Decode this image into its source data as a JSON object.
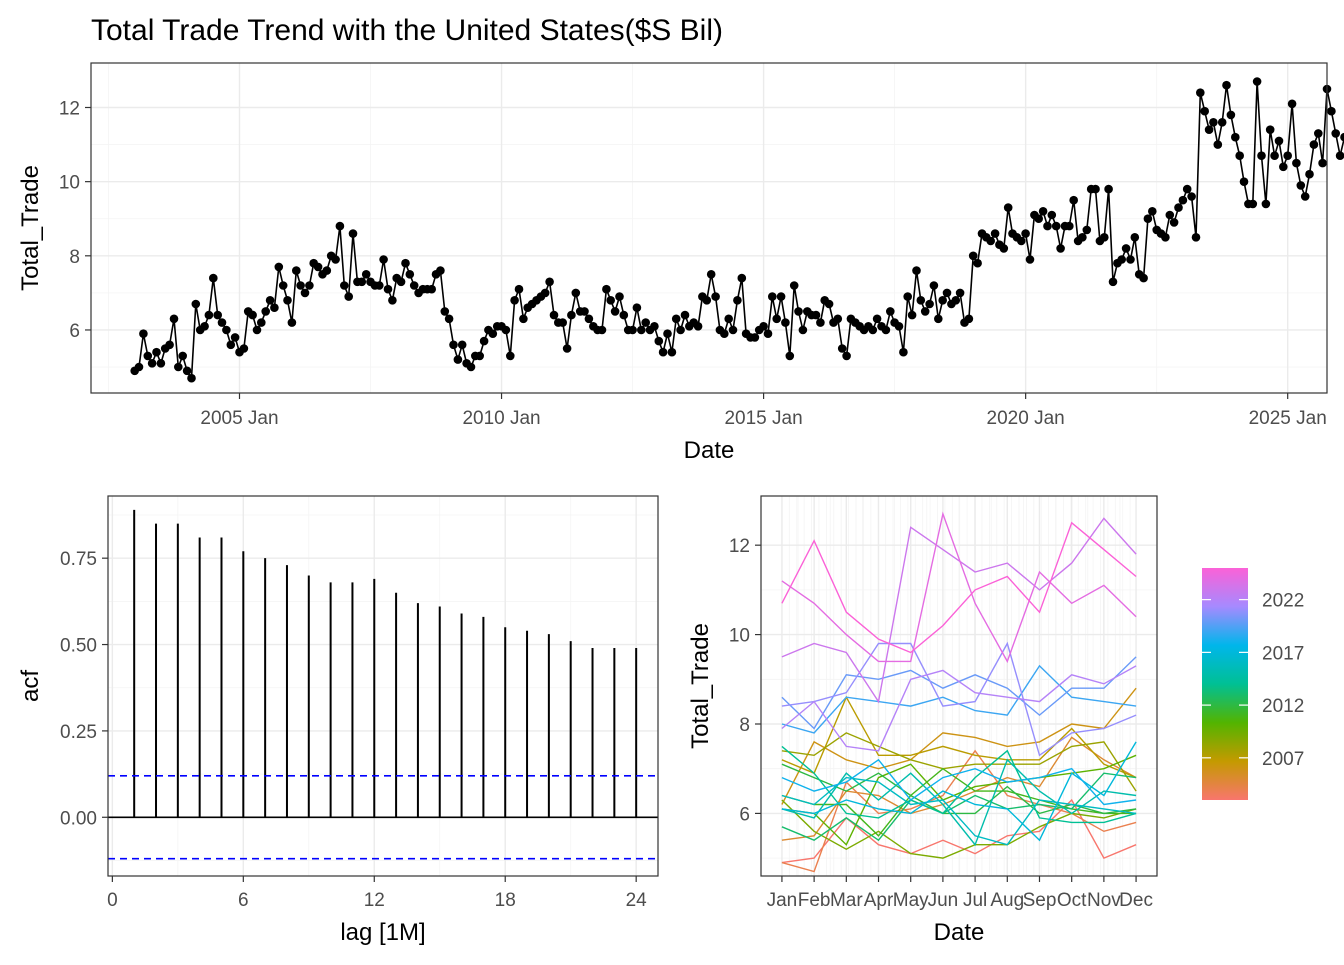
{
  "chart_data": [
    {
      "type": "line",
      "title": "Total Trade Trend with the United States($S Bil)",
      "xlabel": "Date",
      "ylabel": "Total_Trade",
      "x_ticks": [
        "2005 Jan",
        "2010 Jan",
        "2015 Jan",
        "2020 Jan",
        "2025 Jan"
      ],
      "y_ticks": [
        6,
        8,
        10,
        12
      ],
      "xlim": [
        "2002-03",
        "2025-10"
      ],
      "ylim": [
        4.3,
        13.2
      ],
      "grid": true,
      "series": [
        {
          "start": "2003-01",
          "frequency": "monthly",
          "values": [
            4.9,
            5.0,
            5.9,
            5.3,
            5.1,
            5.4,
            5.1,
            5.5,
            5.6,
            6.3,
            5.0,
            5.3,
            4.9,
            4.7,
            6.7,
            6.0,
            6.1,
            6.4,
            7.4,
            6.4,
            6.2,
            6.0,
            5.6,
            5.8,
            5.4,
            5.5,
            6.5,
            6.4,
            6.0,
            6.2,
            6.5,
            6.8,
            6.6,
            7.7,
            7.2,
            6.8,
            6.2,
            7.6,
            7.2,
            7.0,
            7.2,
            7.8,
            7.7,
            7.5,
            7.6,
            8.0,
            7.9,
            8.8,
            7.2,
            6.9,
            8.6,
            7.3,
            7.3,
            7.5,
            7.3,
            7.2,
            7.2,
            7.9,
            7.1,
            6.8,
            7.4,
            7.3,
            7.8,
            7.5,
            7.2,
            7.0,
            7.1,
            7.1,
            7.1,
            7.5,
            7.6,
            6.5,
            6.3,
            5.6,
            5.2,
            5.6,
            5.1,
            5.0,
            5.3,
            5.3,
            5.7,
            6.0,
            5.9,
            6.1,
            6.1,
            6.0,
            5.3,
            6.8,
            7.1,
            6.3,
            6.6,
            6.7,
            6.8,
            6.9,
            7.0,
            7.3,
            6.4,
            6.2,
            6.2,
            5.5,
            6.4,
            7.0,
            6.5,
            6.5,
            6.3,
            6.1,
            6.0,
            6.0,
            7.1,
            6.8,
            6.5,
            6.9,
            6.4,
            6.0,
            6.0,
            6.6,
            6.0,
            6.2,
            6.0,
            6.1,
            5.7,
            5.4,
            5.9,
            5.4,
            6.3,
            6.0,
            6.4,
            6.1,
            6.2,
            6.1,
            6.9,
            6.8,
            7.5,
            6.9,
            6.0,
            5.9,
            6.3,
            6.0,
            6.8,
            7.4,
            5.9,
            5.8,
            5.8,
            6.0,
            6.1,
            5.9,
            6.9,
            6.3,
            6.9,
            6.2,
            5.3,
            7.2,
            6.5,
            6.0,
            6.5,
            6.4,
            6.4,
            6.2,
            6.8,
            6.7,
            6.2,
            6.3,
            5.5,
            5.3,
            6.3,
            6.2,
            6.1,
            6.0,
            6.1,
            6.0,
            6.3,
            6.1,
            6.0,
            6.5,
            6.2,
            6.1,
            5.4,
            6.9,
            6.4,
            7.6,
            6.8,
            6.5,
            6.7,
            7.2,
            6.3,
            6.8,
            7.0,
            6.7,
            6.8,
            7.0,
            6.2,
            6.3,
            8.0,
            7.8,
            8.6,
            8.5,
            8.4,
            8.6,
            8.3,
            8.2,
            9.3,
            8.6,
            8.5,
            8.4,
            8.6,
            7.9,
            9.1,
            9.0,
            9.2,
            8.8,
            9.1,
            8.8,
            8.2,
            8.8,
            8.8,
            9.5,
            8.4,
            8.5,
            8.7,
            9.8,
            9.8,
            8.4,
            8.5,
            9.8,
            7.3,
            7.8,
            7.9,
            8.2,
            7.9,
            8.5,
            7.5,
            7.4,
            9.0,
            9.2,
            8.7,
            8.6,
            8.5,
            9.1,
            8.9,
            9.3,
            9.5,
            9.8,
            9.6,
            8.5,
            12.4,
            11.9,
            11.4,
            11.6,
            11.0,
            11.6,
            12.6,
            11.8,
            11.2,
            10.7,
            10.0,
            9.4,
            9.4,
            12.7,
            10.7,
            9.4,
            11.4,
            10.7,
            11.1,
            10.4,
            10.7,
            12.1,
            10.5,
            9.9,
            9.6,
            10.2,
            11.0,
            11.3,
            10.5,
            12.5,
            11.9,
            11.3,
            10.7,
            11.2,
            12.1,
            11.2
          ]
        }
      ]
    },
    {
      "type": "bar",
      "xlabel": "lag [1M]",
      "ylabel": "acf",
      "x": [
        1,
        2,
        3,
        4,
        5,
        6,
        7,
        8,
        9,
        10,
        11,
        12,
        13,
        14,
        15,
        16,
        17,
        18,
        19,
        20,
        21,
        22,
        23,
        24
      ],
      "values": [
        0.89,
        0.85,
        0.85,
        0.81,
        0.81,
        0.77,
        0.75,
        0.73,
        0.7,
        0.68,
        0.68,
        0.69,
        0.65,
        0.62,
        0.61,
        0.59,
        0.58,
        0.55,
        0.54,
        0.53,
        0.51,
        0.49,
        0.49,
        0.49
      ],
      "confidence_bound": 0.12,
      "x_ticks": [
        0,
        6,
        12,
        18,
        24
      ],
      "y_ticks": [
        0.0,
        0.25,
        0.5,
        0.75
      ],
      "y_tick_labels": [
        "0.00",
        "0.25",
        "0.50",
        "0.75"
      ],
      "xlim": [
        -0.2,
        25.0
      ],
      "ylim": [
        -0.17,
        0.93
      ],
      "grid": true,
      "colors": {
        "bars": "#000000",
        "bound": "#0000ff"
      }
    },
    {
      "type": "line",
      "xlabel": "Date",
      "ylabel": "Total_Trade",
      "categories": [
        "Jan",
        "Feb",
        "Mar",
        "Apr",
        "May",
        "Jun",
        "Jul",
        "Aug",
        "Sep",
        "Oct",
        "Nov",
        "Dec"
      ],
      "y_ticks": [
        6,
        8,
        10,
        12
      ],
      "ylim": [
        4.6,
        13.1
      ],
      "grid": true,
      "legend": {
        "position": "right",
        "title": "",
        "labels": [
          "2007",
          "2012",
          "2017",
          "2022"
        ],
        "range": [
          2003,
          2025
        ],
        "colors": [
          "#f8766d",
          "#c49a00",
          "#53b400",
          "#00c094",
          "#00b6eb",
          "#a58aff",
          "#fb61d7"
        ]
      }
    }
  ]
}
